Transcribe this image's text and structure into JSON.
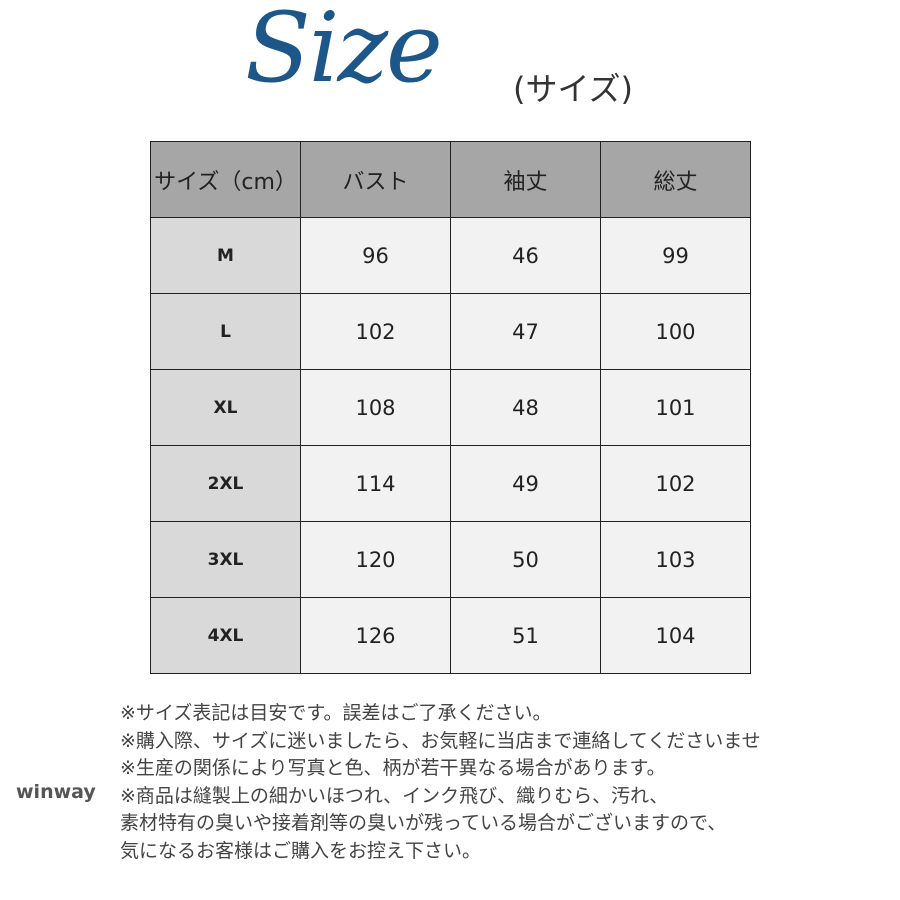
{
  "title": {
    "main": "Size",
    "sub": "(サイズ)"
  },
  "table": {
    "headers": [
      "サイズ（cm）",
      "バスト",
      "袖丈",
      "総丈"
    ],
    "rows": [
      [
        "M",
        "96",
        "46",
        "99"
      ],
      [
        "L",
        "102",
        "47",
        "100"
      ],
      [
        "XL",
        "108",
        "48",
        "101"
      ],
      [
        "2XL",
        "114",
        "49",
        "102"
      ],
      [
        "3XL",
        "120",
        "50",
        "103"
      ],
      [
        "4XL",
        "126",
        "51",
        "104"
      ]
    ]
  },
  "brand": "winway",
  "notes": [
    "※サイズ表記は目安です。誤差はご了承ください。",
    "※購入際、サイズに迷いましたら、お気軽に当店まで連絡してくださいませ",
    "※生産の関係により写真と色、柄が若干異なる場合があります。",
    "※商品は縫製上の細かいほつれ、インク飛び、織りむら、汚れ、",
    "素材特有の臭いや接着剤等の臭いが残っている場合がございますので、",
    "気になるお客様はご購入をお控え下さい。"
  ],
  "colors": {
    "title": "#1d5688",
    "header_bg": "#a6a6a6",
    "size_col_bg": "#d9d9d9",
    "cell_bg": "#f2f2f2"
  }
}
